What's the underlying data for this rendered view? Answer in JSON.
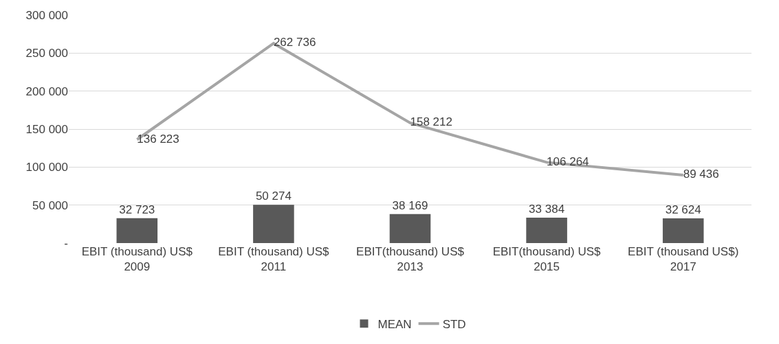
{
  "chart_data": {
    "type": "bar",
    "categories": [
      "EBIT (thousand) US$\n2009",
      "EBIT (thousand) US$\n2011",
      "EBIT(thousand) US$\n2013",
      "EBIT(thousand) US$\n2015",
      "EBIT (thousand US$)\n2017"
    ],
    "series": [
      {
        "name": "MEAN",
        "color": "#595959",
        "values": [
          32723,
          50274,
          38169,
          33384,
          32624
        ],
        "value_labels": [
          "32 723",
          "50 274",
          "38 169",
          "33 384",
          "32 624"
        ]
      },
      {
        "name": "STD",
        "type": "line",
        "color": "#a5a5a5",
        "values": [
          136223,
          262736,
          158212,
          106264,
          89436
        ],
        "value_labels": [
          "136 223",
          "262 736",
          "158 212",
          "106 264",
          "89 436"
        ]
      }
    ],
    "ylim": [
      0,
      300000
    ],
    "yticks": [
      {
        "value": 0,
        "label": "-"
      },
      {
        "value": 50000,
        "label": "50 000"
      },
      {
        "value": 100000,
        "label": "100 000"
      },
      {
        "value": 150000,
        "label": "150 000"
      },
      {
        "value": 200000,
        "label": "200 000"
      },
      {
        "value": 250000,
        "label": "250 000"
      },
      {
        "value": 300000,
        "label": "300 000"
      }
    ],
    "grid": "y",
    "legend": "bottom",
    "marker": "none",
    "line_style": "solid"
  }
}
